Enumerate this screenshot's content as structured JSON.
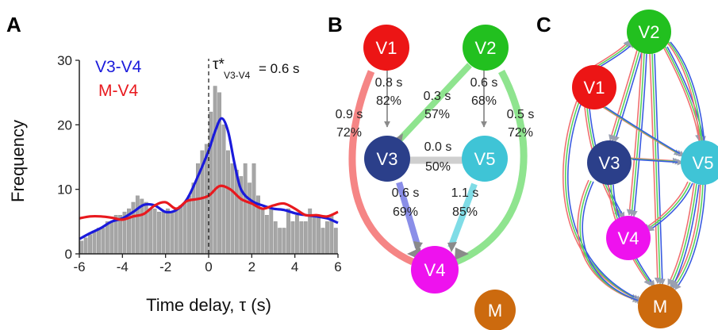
{
  "panel_labels": {
    "a": "A",
    "b": "B",
    "c": "C"
  },
  "chart_data": {
    "type": "bar",
    "xlabel": "Time delay, τ (s)",
    "ylabel": "Frequency",
    "xlim": [
      -6,
      6
    ],
    "ylim": [
      0,
      30
    ],
    "x_ticks": [
      "-6",
      "-4",
      "-2",
      "0",
      "2",
      "4",
      "6"
    ],
    "y_ticks": [
      "0",
      "10",
      "20",
      "30"
    ],
    "annotation": {
      "symbol": "τ*",
      "subscript": "V3-V4",
      "value": " = 0.6 s",
      "x": 0
    },
    "legend": [
      {
        "name": "V3-V4",
        "color": "#1a1adb"
      },
      {
        "name": "M-V4",
        "color": "#e8191e"
      }
    ],
    "histogram": {
      "color": "#a6a6a6",
      "x": [
        -5.9,
        -5.7,
        -5.5,
        -5.3,
        -5.1,
        -4.9,
        -4.7,
        -4.5,
        -4.3,
        -4.1,
        -3.9,
        -3.7,
        -3.5,
        -3.3,
        -3.1,
        -2.9,
        -2.7,
        -2.5,
        -2.3,
        -2.1,
        -1.9,
        -1.7,
        -1.5,
        -1.3,
        -1.1,
        -0.9,
        -0.7,
        -0.5,
        -0.3,
        -0.1,
        0.1,
        0.3,
        0.5,
        0.7,
        0.9,
        1.1,
        1.3,
        1.5,
        1.7,
        1.9,
        2.1,
        2.3,
        2.5,
        2.7,
        2.9,
        3.1,
        3.3,
        3.5,
        3.7,
        3.9,
        4.1,
        4.3,
        4.5,
        4.7,
        4.9,
        5.1,
        5.3,
        5.5,
        5.7,
        5.9
      ],
      "values": [
        2,
        2.5,
        3,
        3.5,
        4,
        4,
        5,
        5,
        6,
        6,
        6.5,
        7,
        8,
        9,
        8.5,
        8,
        7,
        7,
        6.5,
        6.5,
        7,
        6.5,
        7,
        7.5,
        8,
        9,
        11,
        14,
        16,
        17,
        22,
        26,
        25,
        20,
        16,
        14,
        13,
        12,
        14,
        11,
        14,
        9,
        7,
        6,
        7,
        5,
        4,
        4,
        7,
        5,
        6,
        5,
        5,
        7,
        6,
        6,
        4,
        5,
        6,
        4
      ]
    },
    "series": [
      {
        "name": "V3-V4",
        "color": "#1a1adb",
        "x": [
          -6,
          -5.5,
          -5,
          -4.5,
          -4,
          -3.5,
          -3,
          -2.5,
          -2,
          -1.5,
          -1,
          -0.5,
          0,
          0.3,
          0.6,
          0.9,
          1.2,
          1.5,
          2,
          2.5,
          3,
          3.5,
          4,
          4.5,
          5,
          5.5,
          6
        ],
        "values": [
          2.3,
          3.2,
          4,
          5,
          5.5,
          6.5,
          7.6,
          7.5,
          6.5,
          6.8,
          8.5,
          12,
          16,
          19,
          21,
          19,
          14,
          10,
          8.2,
          7.5,
          7,
          6.8,
          6.3,
          6,
          5.8,
          5.5,
          4.8
        ]
      },
      {
        "name": "M-V4",
        "color": "#e8191e",
        "x": [
          -6,
          -5.5,
          -5,
          -4.5,
          -4,
          -3.5,
          -3,
          -2.5,
          -2,
          -1.5,
          -1,
          -0.5,
          0,
          0.5,
          1,
          1.5,
          2,
          2.5,
          3,
          3.5,
          4,
          4.5,
          5,
          5.5,
          6
        ],
        "values": [
          5.5,
          5.8,
          5.8,
          5.6,
          5.3,
          5.8,
          6.2,
          7.5,
          8,
          7,
          8.2,
          8.5,
          9,
          10.5,
          10,
          8.5,
          7.8,
          7,
          7.5,
          7.8,
          7,
          6,
          6,
          5.8,
          6.5
        ]
      }
    ]
  },
  "diagram_b": {
    "nodes": [
      {
        "id": "V1",
        "label": "V1",
        "color": "#ec1515"
      },
      {
        "id": "V2",
        "label": "V2",
        "color": "#22c01f"
      },
      {
        "id": "V3",
        "label": "V3",
        "color": "#2b3f8a"
      },
      {
        "id": "V5",
        "label": "V5",
        "color": "#3fc4d6"
      },
      {
        "id": "V4",
        "label": "V4",
        "color": "#ee12ee"
      },
      {
        "id": "M",
        "label": "M",
        "color": "#cc6a0e"
      }
    ],
    "edges": [
      {
        "from": "V1",
        "to": "V3",
        "line1": "0.8 s",
        "line2": "82%"
      },
      {
        "from": "V2",
        "to": "V3",
        "line1": "0.3 s",
        "line2": "57%"
      },
      {
        "from": "V2",
        "to": "V5",
        "line1": "0.6 s",
        "line2": "68%"
      },
      {
        "from": "V1",
        "to": "V4",
        "line1": "0.9 s",
        "line2": "72%"
      },
      {
        "from": "V2",
        "to": "V4",
        "line1": "0.5 s",
        "line2": "72%"
      },
      {
        "from": "V3",
        "to": "V5",
        "line1": "0.0 s",
        "line2": "50%"
      },
      {
        "from": "V3",
        "to": "V4",
        "line1": "0.6 s",
        "line2": "69%"
      },
      {
        "from": "V5",
        "to": "V4",
        "line1": "1.1 s",
        "line2": "85%"
      }
    ]
  },
  "diagram_c": {
    "nodes": [
      {
        "id": "V2",
        "label": "V2",
        "color": "#22c01f"
      },
      {
        "id": "V1",
        "label": "V1",
        "color": "#ec1515"
      },
      {
        "id": "V3",
        "label": "V3",
        "color": "#2b3f8a"
      },
      {
        "id": "V5",
        "label": "V5",
        "color": "#3fc4d6"
      },
      {
        "id": "V4",
        "label": "V4",
        "color": "#ee12ee"
      },
      {
        "id": "M",
        "label": "M",
        "color": "#cc6a0e"
      }
    ],
    "edge_colors": [
      "#f07070",
      "#5bd35b",
      "#3a5be0"
    ]
  }
}
